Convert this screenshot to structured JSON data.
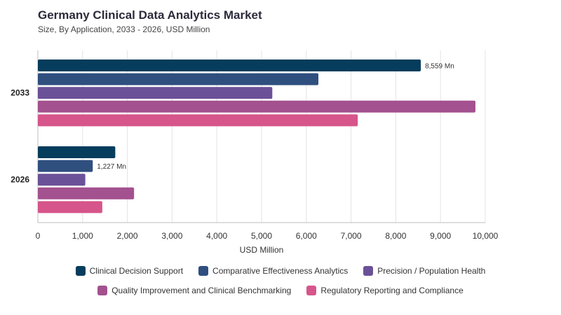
{
  "chart_data": {
    "type": "bar",
    "orientation": "horizontal",
    "title": "Germany Clinical Data Analytics Market",
    "subtitle": "Size, By Application, 2033 - 2026, USD Million",
    "xlabel": "USD Million",
    "ylabel": "",
    "xlim": [
      0,
      10000
    ],
    "xticks": [
      0,
      1000,
      2000,
      3000,
      4000,
      5000,
      6000,
      7000,
      8000,
      9000,
      10000
    ],
    "xtick_labels": [
      "0",
      "1,000",
      "2,000",
      "3,000",
      "4,000",
      "5,000",
      "6,000",
      "7,000",
      "8,000",
      "9,000",
      "10,000"
    ],
    "grid": "vertical",
    "legend_position": "bottom",
    "categories": [
      "2033",
      "2026"
    ],
    "series": [
      {
        "name": "Clinical Decision Support",
        "color": "#063d5c",
        "values": [
          8559,
          1730
        ]
      },
      {
        "name": "Comparative Effectiveness Analytics",
        "color": "#2f4f7f",
        "values": [
          6270,
          1227
        ]
      },
      {
        "name": "Precision / Population Health",
        "color": "#6b5197",
        "values": [
          5240,
          1060
        ]
      },
      {
        "name": "Quality Improvement and Clinical Benchmarking",
        "color": "#a3518f",
        "values": [
          9780,
          2150
        ]
      },
      {
        "name": "Regulatory Reporting and Compliance",
        "color": "#d6558b",
        "values": [
          7150,
          1440
        ]
      }
    ],
    "annotations": [
      {
        "category": "2033",
        "series": 0,
        "text": "8,559 Mn"
      },
      {
        "category": "2026",
        "series": 1,
        "text": "1,227 Mn"
      }
    ]
  }
}
